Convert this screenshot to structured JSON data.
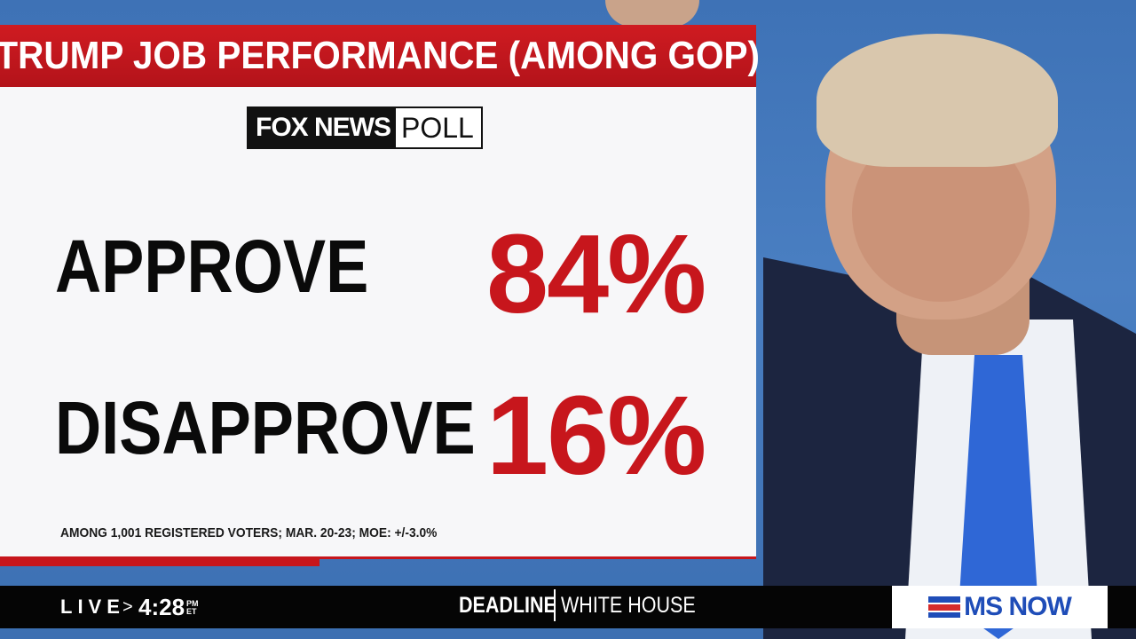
{
  "card": {
    "title": "TRUMP JOB PERFORMANCE (AMONG GOP)",
    "logo": {
      "left": "FOX NEWS",
      "right": "POLL"
    },
    "rows": [
      {
        "label": "APPROVE",
        "value": "84%"
      },
      {
        "label": "DISAPPROVE",
        "value": "16%"
      }
    ],
    "footnote": "AMONG 1,001 REGISTERED VOTERS; MAR. 20-23; MOE: +/-3.0%"
  },
  "ticker": {
    "live": "LIVE",
    "separator": ">",
    "time": "4:28",
    "ampm": "PM",
    "tz": "ET",
    "show_left": "DEADLINE",
    "show_right": "WHITE HOUSE",
    "network": "MS NOW"
  },
  "colors": {
    "accent_red": "#c7161c",
    "background_blue": "#3f74b8",
    "network_blue": "#1f4db8"
  }
}
